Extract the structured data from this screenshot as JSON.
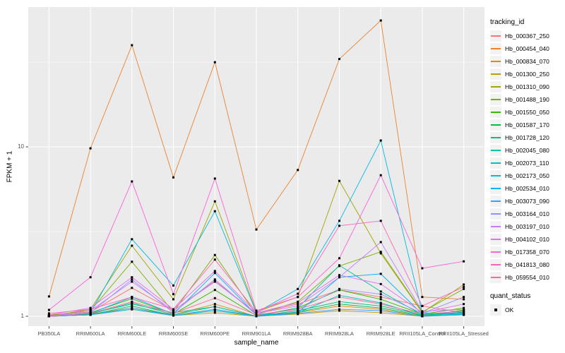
{
  "figure": {
    "y_axis_title": "FPKM + 1",
    "x_axis_title": "sample_name",
    "colors": {
      "background": "#FFFFFF",
      "panel_background": "#EBEBEB",
      "gridline": "#FFFFFF",
      "legend_key_background": "#F2F2F2",
      "tick_mark": "#333333",
      "tick_label": "#4D4D4D",
      "point": "#000000"
    }
  },
  "legend": {
    "tracking_title": "tracking_id",
    "quant_title": "quant_status",
    "quant_items": [
      {
        "label": "OK",
        "shape": "square",
        "color": "#000000"
      }
    ]
  },
  "chart_data": {
    "type": "line",
    "title": "",
    "xlabel": "sample_name",
    "ylabel": "FPKM + 1",
    "y_scale": "log10",
    "ylim": [
      0.82,
      68
    ],
    "y_major_ticks": [
      10,
      1
    ],
    "y_minor_gridlines": [
      31.62,
      3.162
    ],
    "grid": true,
    "legend_position": "right",
    "point_shape": "square",
    "point_color": "#000000",
    "categories": [
      "PB350LA",
      "RRIM600LA",
      "RRIM600LE",
      "RRIM600SE",
      "RRIM600PE",
      "RRIM901LA",
      "RRIM928BA",
      "RRIM928LA",
      "RRIM928LE",
      "RRII105LA_Control",
      "RRII105LA_Stressed"
    ],
    "series": [
      {
        "name": "Hb_000367_250",
        "color": "#F8766D",
        "values": [
          1.02,
          1.06,
          1.47,
          1.08,
          1.62,
          1.04,
          1.18,
          1.43,
          1.3,
          1.15,
          1.05
        ]
      },
      {
        "name": "Hb_000454_040",
        "color": "#EA8331",
        "values": [
          1.31,
          9.8,
          39.8,
          6.6,
          31.6,
          3.25,
          7.3,
          33.0,
          55.7,
          1.3,
          1.26
        ]
      },
      {
        "name": "Hb_000834_070",
        "color": "#D89000",
        "values": [
          1.0,
          1.03,
          1.12,
          1.02,
          1.18,
          1.0,
          1.05,
          1.15,
          1.1,
          1.0,
          1.09
        ]
      },
      {
        "name": "Hb_001300_250",
        "color": "#C09B00",
        "values": [
          1.0,
          1.02,
          1.1,
          1.01,
          1.05,
          1.0,
          1.03,
          1.08,
          1.05,
          1.0,
          1.02
        ]
      },
      {
        "name": "Hb_001310_090",
        "color": "#A3A500",
        "values": [
          1.0,
          1.1,
          2.61,
          1.26,
          4.77,
          1.06,
          1.3,
          6.3,
          2.35,
          1.05,
          1.54
        ]
      },
      {
        "name": "Hb_001488_190",
        "color": "#7CAE00",
        "values": [
          1.01,
          1.08,
          2.1,
          1.06,
          2.3,
          1.02,
          1.22,
          1.98,
          2.4,
          1.06,
          1.45
        ]
      },
      {
        "name": "Hb_001550_050",
        "color": "#39B600",
        "values": [
          1.0,
          1.05,
          1.27,
          1.03,
          1.43,
          1.01,
          1.12,
          1.43,
          1.26,
          1.03,
          1.12
        ]
      },
      {
        "name": "Hb_001587_170",
        "color": "#00BB4E",
        "values": [
          1.0,
          1.02,
          1.15,
          1.01,
          1.1,
          1.0,
          1.06,
          1.18,
          1.12,
          1.01,
          1.06
        ]
      },
      {
        "name": "Hb_001728_120",
        "color": "#00BF7D",
        "values": [
          1.0,
          1.03,
          1.2,
          1.02,
          1.14,
          1.0,
          1.08,
          1.22,
          1.15,
          1.02,
          1.04
        ]
      },
      {
        "name": "Hb_002045_080",
        "color": "#00C1A3",
        "values": [
          1.0,
          1.04,
          1.18,
          1.05,
          1.14,
          1.0,
          1.12,
          2.0,
          1.4,
          1.02,
          1.08
        ]
      },
      {
        "name": "Hb_002073_110",
        "color": "#00BFC4",
        "values": [
          1.0,
          1.02,
          1.1,
          1.01,
          1.08,
          1.0,
          1.05,
          1.33,
          1.2,
          1.01,
          1.03
        ]
      },
      {
        "name": "Hb_002173_050",
        "color": "#00BAE0",
        "values": [
          1.0,
          1.05,
          2.85,
          1.52,
          4.17,
          1.05,
          1.45,
          3.66,
          10.9,
          1.05,
          1.02
        ]
      },
      {
        "name": "Hb_002534_010",
        "color": "#00B0F6",
        "values": [
          1.0,
          1.04,
          1.3,
          1.03,
          1.8,
          1.02,
          1.05,
          1.7,
          1.78,
          1.03,
          1.05
        ]
      },
      {
        "name": "Hb_003073_090",
        "color": "#35A2FF",
        "values": [
          1.0,
          1.02,
          1.12,
          1.01,
          1.1,
          1.0,
          1.04,
          1.1,
          1.08,
          1.0,
          1.02
        ]
      },
      {
        "name": "Hb_003164_010",
        "color": "#9590FF",
        "values": [
          1.0,
          1.05,
          1.65,
          1.05,
          1.65,
          1.02,
          1.1,
          1.45,
          1.35,
          1.04,
          1.3
        ]
      },
      {
        "name": "Hb_003197_010",
        "color": "#C77CFF",
        "values": [
          1.0,
          1.08,
          1.6,
          1.08,
          1.6,
          1.04,
          1.15,
          1.7,
          2.74,
          1.07,
          1.1
        ]
      },
      {
        "name": "Hb_004102_010",
        "color": "#E76BF3",
        "values": [
          1.02,
          1.12,
          1.7,
          1.1,
          1.85,
          1.05,
          1.2,
          1.75,
          1.55,
          1.05,
          1.18
        ]
      },
      {
        "name": "Hb_017358_070",
        "color": "#FA62DB",
        "values": [
          1.09,
          1.7,
          6.25,
          1.35,
          6.5,
          1.08,
          1.3,
          2.2,
          6.8,
          1.92,
          2.11
        ]
      },
      {
        "name": "Hb_041813_080",
        "color": "#FF62BC",
        "values": [
          1.04,
          1.1,
          1.3,
          1.1,
          2.16,
          1.06,
          1.36,
          3.42,
          3.66,
          1.15,
          1.49
        ]
      },
      {
        "name": "Hb_059554_010",
        "color": "#FF6A98",
        "values": [
          1.0,
          1.04,
          1.22,
          1.04,
          1.28,
          1.02,
          1.1,
          1.3,
          1.18,
          1.03,
          1.07
        ]
      }
    ]
  }
}
